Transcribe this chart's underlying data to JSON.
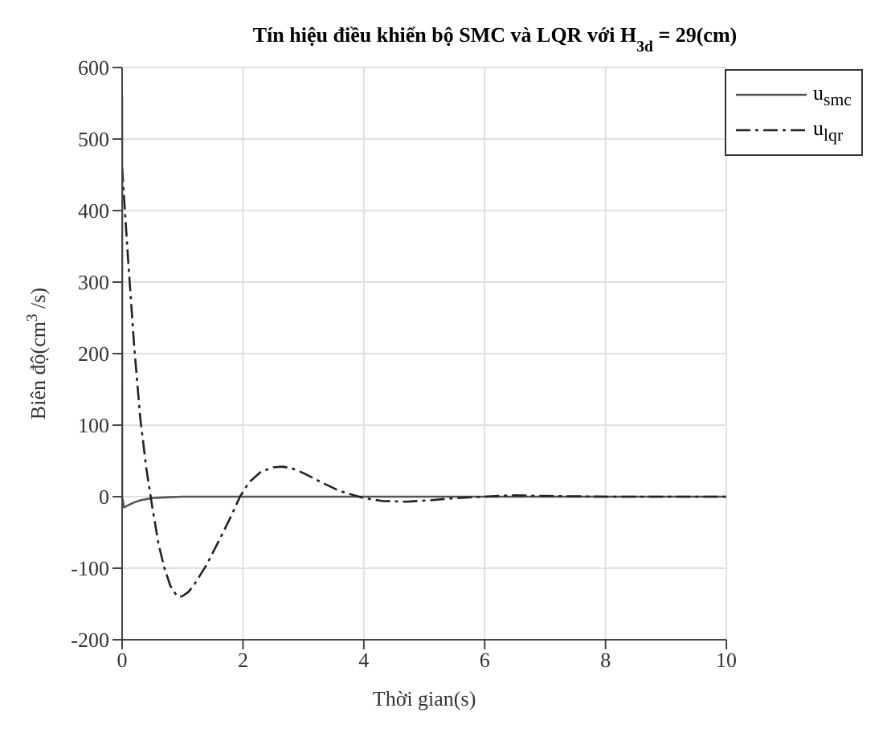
{
  "chart_data": {
    "type": "line",
    "title": "Tín hiệu điều khiển bộ SMC và LQR với H$_{3d}$ = 29(cm)",
    "xlabel": "Thời gian(s)",
    "ylabel": "Biên độ(cm$^{3}$/s)",
    "xlim": [
      0,
      10
    ],
    "xticks": [
      0,
      2,
      4,
      6,
      8,
      10
    ],
    "ylim": [
      -200,
      600
    ],
    "yticks": [
      -200,
      -100,
      0,
      100,
      200,
      300,
      400,
      500,
      600
    ],
    "grid": true,
    "legend": "top right",
    "marker": "none",
    "series": [
      {
        "name": "u$_{smc}$",
        "color": "#555555",
        "line_style": "solid",
        "x": [
          0,
          0.001,
          0.03,
          0.1,
          0.2,
          0.3,
          0.5,
          0.7,
          1,
          1.5,
          2,
          3,
          4,
          6,
          8,
          10
        ],
        "values": [
          560,
          0,
          -15,
          -12,
          -8,
          -5,
          -2,
          -1,
          0,
          0,
          0,
          0,
          0,
          0,
          0,
          0
        ]
      },
      {
        "name": "u$_{lqr}$",
        "color": "#222222",
        "line_style": "dashdot",
        "x": [
          0,
          0.1,
          0.2,
          0.3,
          0.4,
          0.5,
          0.6,
          0.7,
          0.8,
          0.9,
          0.95,
          1.0,
          1.1,
          1.2,
          1.4,
          1.6,
          1.8,
          1.95,
          2.1,
          2.3,
          2.5,
          2.65,
          2.8,
          3.0,
          3.3,
          3.6,
          4.0,
          4.3,
          4.7,
          5.1,
          5.5,
          6.0,
          6.5,
          7,
          8,
          9,
          10
        ],
        "values": [
          460,
          330,
          210,
          110,
          40,
          -15,
          -65,
          -100,
          -125,
          -138,
          -140,
          -139,
          -133,
          -122,
          -95,
          -62,
          -28,
          0,
          20,
          35,
          41,
          42,
          40,
          33,
          20,
          8,
          -2,
          -6,
          -7,
          -5,
          -2,
          0,
          2,
          1,
          0,
          0,
          0
        ]
      }
    ]
  }
}
